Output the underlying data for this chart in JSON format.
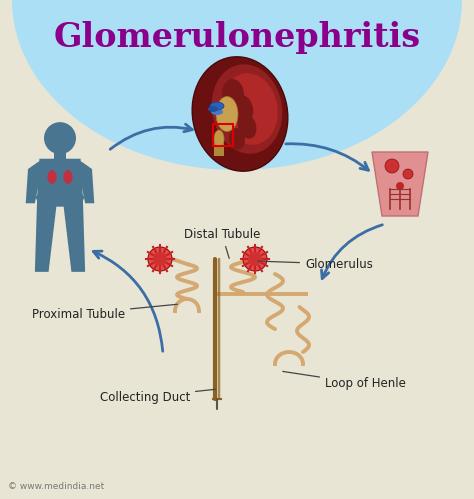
{
  "title": "Glomerulonephritis",
  "title_color": "#8B008B",
  "title_fontsize": 24,
  "title_fontweight": "bold",
  "background_color": "#E8E5D5",
  "top_bg_color": "#AADFF5",
  "watermark": "© www.medindia.net",
  "labels": {
    "distal_tubule": "Distal Tubule",
    "glomerulus": "Glomerulus",
    "proximal_tubule": "Proximal Tubule",
    "collecting_duct": "Collecting Duct",
    "loop_of_henle": "Loop of Henle"
  },
  "label_fontsize": 8.5,
  "label_color": "#222222",
  "arrow_color": "#3A6EA5",
  "arrow_lw": 2.0,
  "figsize": [
    4.74,
    4.99
  ],
  "dpi": 100,
  "human_color": "#4A7590",
  "kidney_outer": "#7B1515",
  "kidney_mid": "#A02020",
  "kidney_lobe": "#C83030",
  "kidney_vessel_blue": "#4A70B0",
  "kidney_vessel_tan": "#C09050",
  "nephron_seg_color": "#E09090",
  "tubule_color": "#D4A870",
  "tubule_dark": "#B08030",
  "glom_color": "#CC2020",
  "collecting_duct_color": "#8B6020"
}
